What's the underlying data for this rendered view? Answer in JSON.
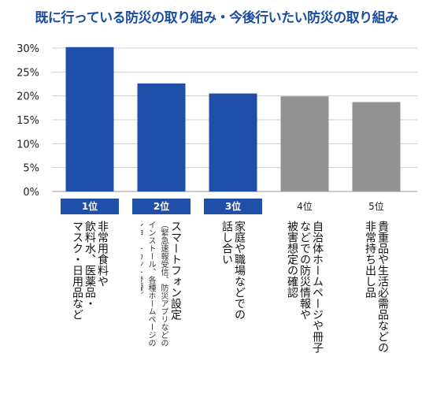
{
  "colors": {
    "title": "#1a4ca0",
    "highlight": "#1f4fa8",
    "other": "#929292",
    "gridline": "#cfcfcf"
  },
  "chart_data": {
    "type": "bar",
    "title": "既に行っている防災の取り組み・今後行いたい防災の取り組み",
    "ylim": [
      0,
      30
    ],
    "yticks": [
      "30%",
      "25%",
      "20%",
      "15%",
      "10%",
      "5%",
      "0%"
    ],
    "categories": [
      "非常用食料や飲料水、医薬品・マスク・日用品など",
      "スマートフォン設定（緊急速報受信、防災アプリなどのインストール、各種ホームページのショートカット登録）",
      "家庭や職場などでの話し合い",
      "自治体ホームページや冊子などでの防災情報や被害想定の確認",
      "貴重品や生活必需品などの非常持ち出し品"
    ],
    "values": [
      30.2,
      22.6,
      20.5,
      19.9,
      18.7
    ],
    "ranks": [
      "1位",
      "2位",
      "3位",
      "4位",
      "5位"
    ],
    "highlighted": [
      true,
      true,
      true,
      false,
      false
    ],
    "label_lines": [
      {
        "main": [
          "非常用食料や",
          "飲料水、医薬品・",
          "マスク・日用品など"
        ],
        "sub": []
      },
      {
        "main": [
          "スマートフォン設定"
        ],
        "sub": [
          "（緊急速報受信、防災アプリなどの",
          "インストール、各種ホームページの",
          "ショートカット登録）"
        ]
      },
      {
        "main": [
          "家庭や職場などでの",
          "話し合い"
        ],
        "sub": []
      },
      {
        "main": [
          "自治体ホームページや冊子",
          "などでの防災情報や",
          "被害想定の確認"
        ],
        "sub": []
      },
      {
        "main": [
          "貴重品や生活必需品などの",
          "非常持ち出し品"
        ],
        "sub": []
      }
    ]
  }
}
